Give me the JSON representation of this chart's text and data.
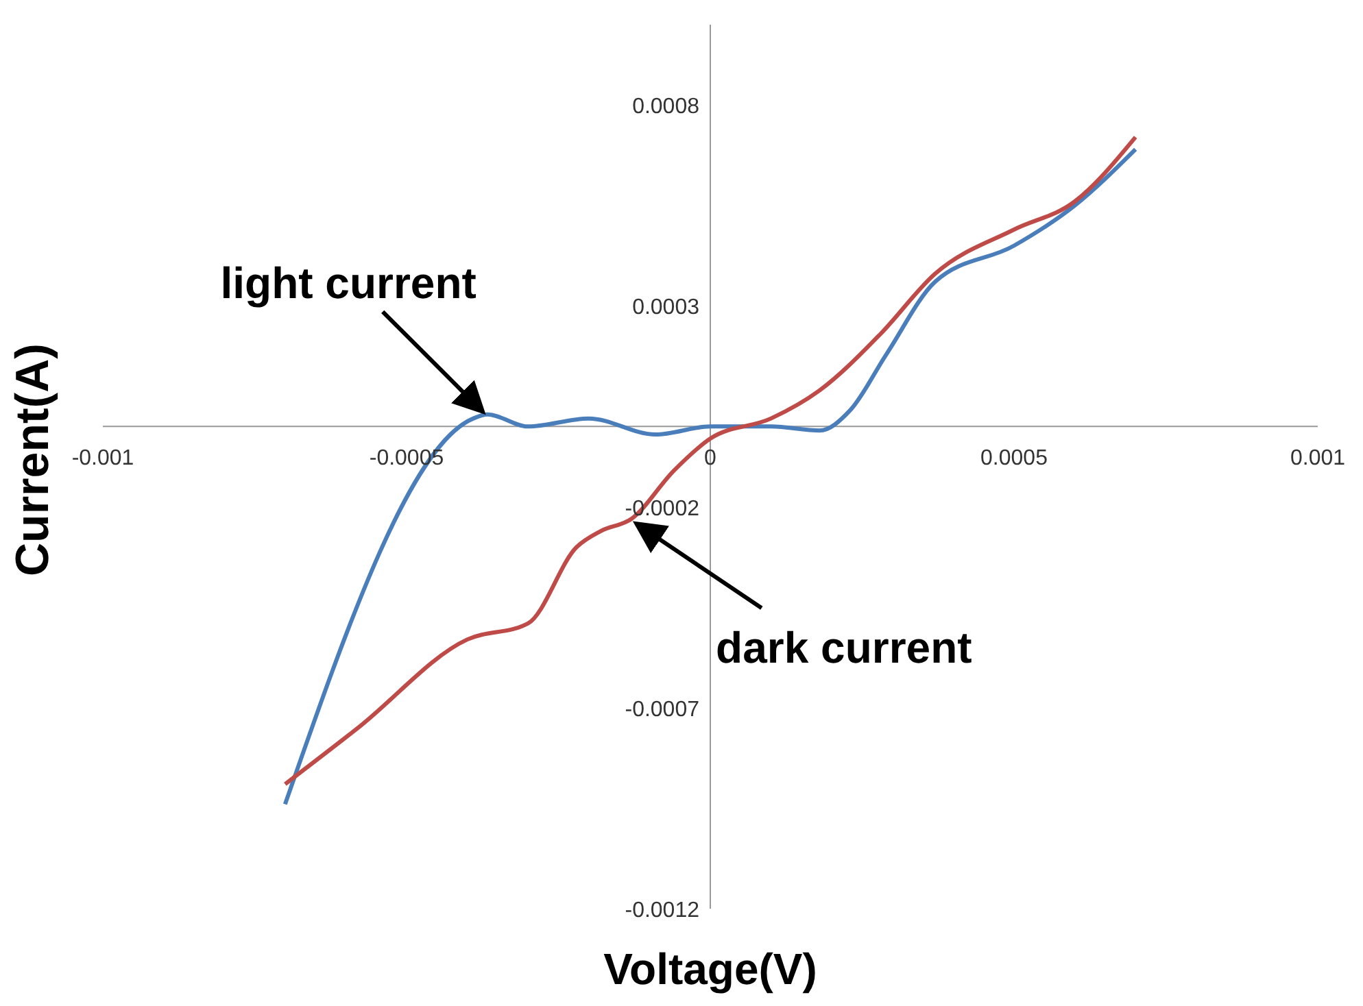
{
  "chart_data": {
    "type": "line",
    "xlabel": "Voltage(V)",
    "ylabel": "Current(A)",
    "xlim": [
      -0.001,
      0.001
    ],
    "xticks": [
      -0.001,
      -0.0005,
      0,
      0.0005,
      0.001
    ],
    "ylim": [
      -0.0012,
      0.001
    ],
    "yticks": [
      -0.0012,
      -0.0007,
      -0.0002,
      0.0003,
      0.0008
    ],
    "grid": false,
    "legend": false,
    "marker": "none",
    "series": [
      {
        "color": "#4a7ebb",
        "x": [
          -0.0007,
          -0.00039,
          -0.000367,
          -0.0003,
          -0.0002,
          -9e-05,
          0,
          0.0001,
          0.00018,
          0.00023,
          0.00029,
          0.00037,
          0.0005,
          0.0006,
          0.0007
        ],
        "values": [
          -0.00094,
          2e-05,
          3e-05,
          0,
          2e-05,
          -2e-05,
          0,
          0,
          -1e-05,
          4e-05,
          0.00018,
          0.00036,
          0.00045,
          0.00055,
          0.00069
        ]
      },
      {
        "color": "#be4b48",
        "x": [
          -0.0007,
          -0.00058,
          -0.0004,
          -0.0003,
          -0.00022,
          -0.00018,
          -0.00013,
          -6e-05,
          0,
          0.0001,
          0.00018,
          0.00028,
          0.00037,
          0.0005,
          0.0006,
          0.0007
        ],
        "values": [
          -0.00089,
          -0.00075,
          -0.00053,
          -0.00049,
          -0.0003,
          -0.00026,
          -0.00023,
          -0.00011,
          -3e-05,
          2e-05,
          9e-05,
          0.00023,
          0.00038,
          0.00049,
          0.00056,
          0.00072
        ]
      }
    ],
    "annotations": [
      {
        "text": "light current",
        "x": -0.00037,
        "y": 3e-05
      },
      {
        "text": "dark current",
        "x": -0.00013,
        "y": -0.00023
      }
    ]
  }
}
